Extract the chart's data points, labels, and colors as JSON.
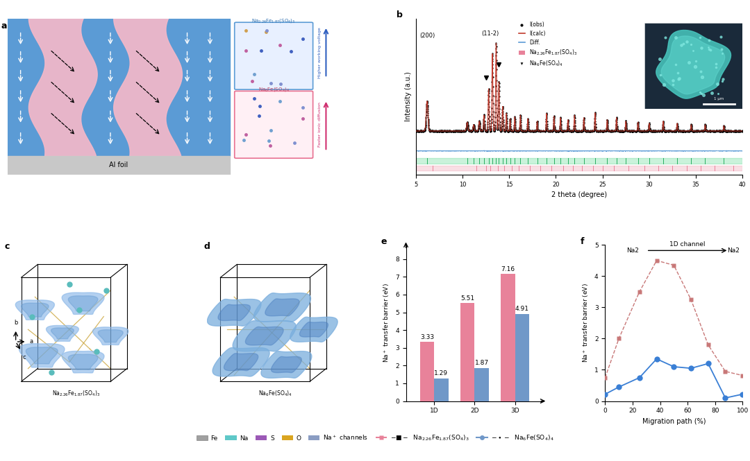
{
  "panel_e": {
    "categories": [
      "1D",
      "2D",
      "3D"
    ],
    "pink_values": [
      3.33,
      5.51,
      7.16
    ],
    "blue_values": [
      1.29,
      1.87,
      4.91
    ],
    "pink_color": "#E8829A",
    "blue_color": "#7098C8",
    "ylabel": "Na$^+$ transfer barrier (eV)"
  },
  "panel_f": {
    "pink_x": [
      0,
      10,
      25,
      37.5,
      50,
      62.5,
      75,
      87.5,
      100
    ],
    "pink_y": [
      0.75,
      2.0,
      3.5,
      4.5,
      4.35,
      3.25,
      1.8,
      0.95,
      0.82
    ],
    "blue_x": [
      0,
      10,
      25,
      37.5,
      50,
      62.5,
      75,
      87.5,
      100
    ],
    "blue_y": [
      0.22,
      0.45,
      0.75,
      1.35,
      1.1,
      1.05,
      1.2,
      0.1,
      0.22
    ],
    "pink_color": "#C87878",
    "blue_color": "#3A7FD5",
    "xlabel": "Migration path (%)",
    "ylabel": "Na$^+$ transfer barrier (eV)",
    "xlim": [
      0,
      100
    ],
    "ylim": [
      0,
      5
    ]
  },
  "legend": {
    "fe_color": "#A0A0A0",
    "na_color": "#5FC8C8",
    "s_color": "#9B59B6",
    "o_color": "#DAA520",
    "na_channels_color": "#8B9DC3",
    "pink_series_color": "#E8829A",
    "blue_series_color": "#7098C8"
  },
  "bg_color": "#FFFFFF"
}
